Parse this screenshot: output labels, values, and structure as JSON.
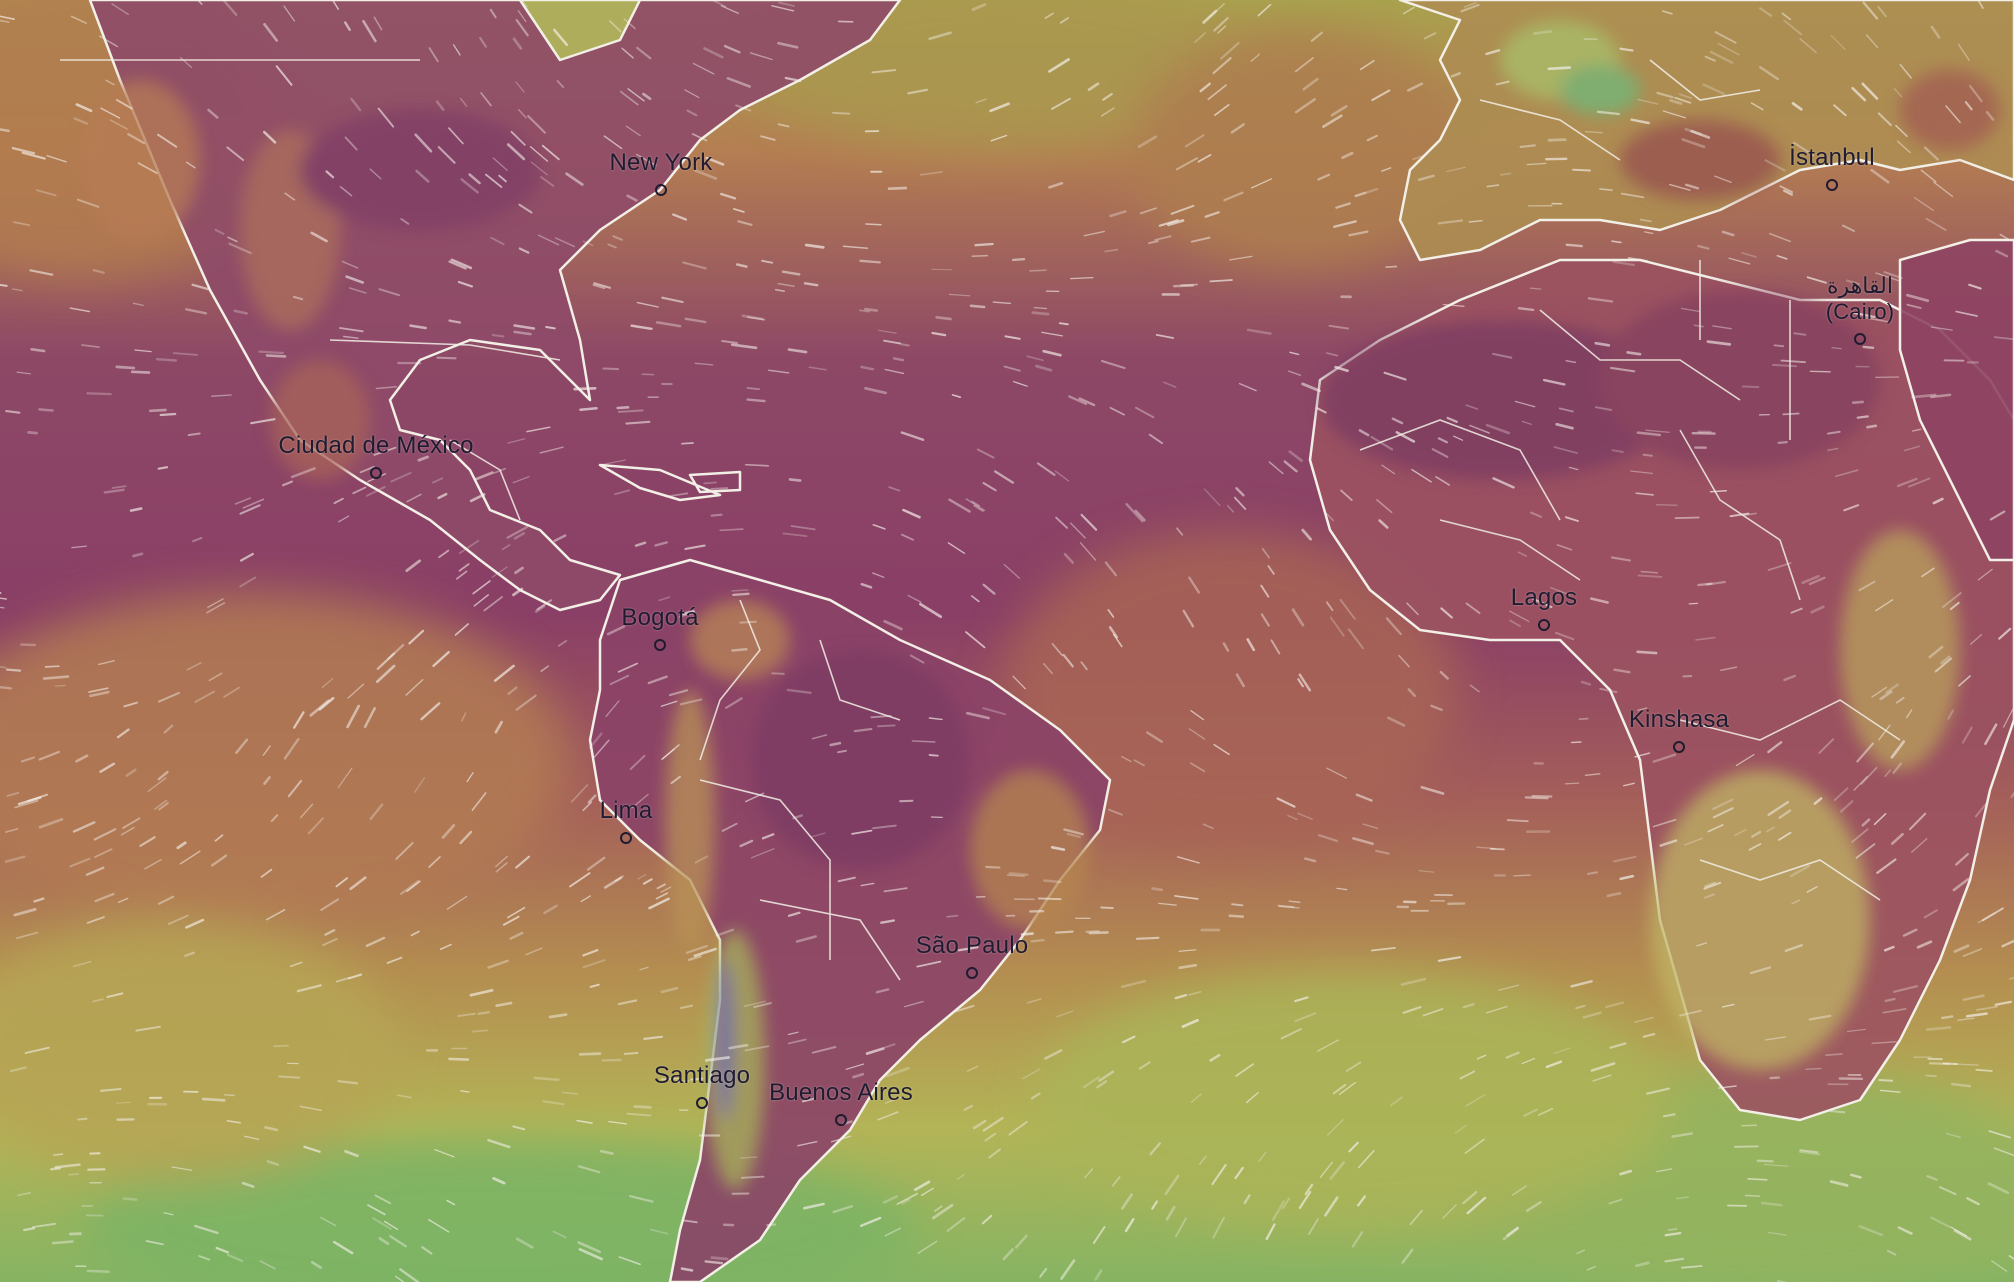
{
  "map": {
    "colors": {
      "hot": "#8a3f6a",
      "warm": "#b06a58",
      "mild": "#b89a50",
      "cool": "#b8c05a",
      "cold": "#6fb168",
      "land_border": "#f2efe6",
      "wind_streak": "#f4efe9"
    },
    "cities": [
      {
        "id": "new-york",
        "label": "New York"
      },
      {
        "id": "ciudad-de-mexico",
        "label": "Ciudad de México"
      },
      {
        "id": "bogota",
        "label": "Bogotá"
      },
      {
        "id": "lima",
        "label": "Lima"
      },
      {
        "id": "sao-paulo",
        "label": "São Paulo"
      },
      {
        "id": "santiago",
        "label": "Santiago"
      },
      {
        "id": "buenos-aires",
        "label": "Buenos Aires"
      },
      {
        "id": "lagos",
        "label": "Lagos"
      },
      {
        "id": "kinshasa",
        "label": "Kinshasa"
      },
      {
        "id": "istanbul",
        "label": "İstanbul"
      },
      {
        "id": "cairo",
        "label": "القاهرة",
        "label2": "(Cairo)"
      }
    ]
  }
}
